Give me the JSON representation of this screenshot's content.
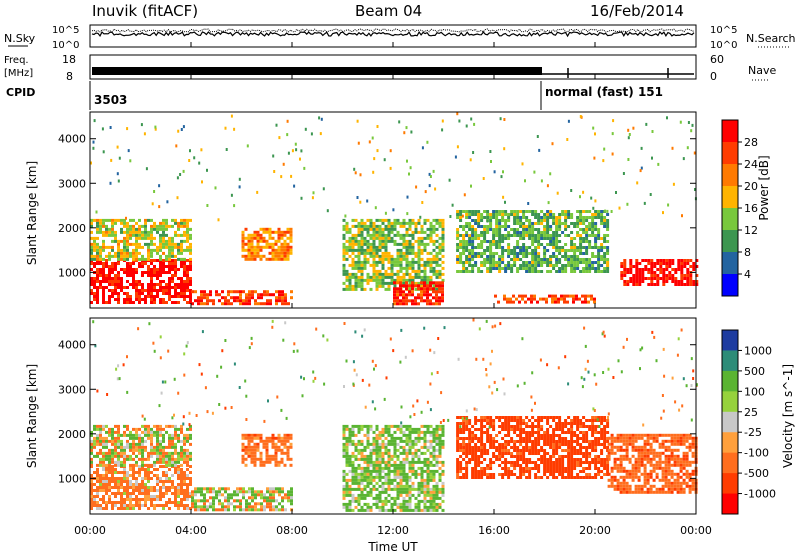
{
  "header": {
    "station": "Inuvik (fitACF)",
    "beam": "Beam 04",
    "date": "16/Feb/2014"
  },
  "nsky_panel": {
    "left_label": "N.Sky",
    "right_label": "N.Search",
    "ytick_top": "10^5",
    "ytick_bottom": "10^0"
  },
  "freq_panel": {
    "label_top": "Freq.",
    "label_bottom": "[MHz]",
    "ytick_left_top": "18",
    "ytick_left_bottom": "8",
    "ytick_right_top": "60",
    "ytick_right_bottom": "0",
    "right_label": "Nave"
  },
  "cpid_panel": {
    "label": "CPID",
    "segment1": "3503",
    "segment2": "normal (fast) 151",
    "segment2_start_hour": 18.0
  },
  "x_axis": {
    "label": "Time UT",
    "ticks": [
      "00:00",
      "04:00",
      "08:00",
      "12:00",
      "16:00",
      "20:00",
      "00:00"
    ]
  },
  "power_colorbar": {
    "label": "Power [dB]",
    "ticks": [
      "28",
      "24",
      "20",
      "16",
      "12",
      "8",
      "4"
    ],
    "colors": [
      "#ff0000",
      "#ff3c00",
      "#ff7a00",
      "#ffb400",
      "#78c83c",
      "#3c9650",
      "#2364a0",
      "#0000ff"
    ]
  },
  "velocity_colorbar": {
    "label": "Velocity [m s^-1]",
    "ticks": [
      "1000",
      "500",
      "100",
      "25",
      "-25",
      "-100",
      "-500",
      "-1000"
    ],
    "colors": [
      "#1e3ca0",
      "#2d8c78",
      "#5ab432",
      "#96d23c",
      "#c8c8c8",
      "#ffa03c",
      "#ff6e1e",
      "#ff3c00",
      "#ff0000"
    ]
  },
  "chart_data": [
    {
      "type": "heatmap",
      "title": "Power",
      "xlabel": "",
      "ylabel": "Slant Range [km]",
      "xlim": [
        0,
        24
      ],
      "ylim": [
        200,
        4600
      ],
      "yticks": [
        1000,
        2000,
        3000,
        4000
      ],
      "regions": [
        {
          "x0": 0.0,
          "x1": 4.0,
          "y0": 300,
          "y1": 1300,
          "value_db": 28
        },
        {
          "x0": 0.0,
          "x1": 4.0,
          "y0": 1300,
          "y1": 2200,
          "value_db": 14
        },
        {
          "x0": 4.0,
          "x1": 8.0,
          "y0": 300,
          "y1": 600,
          "value_db": 24
        },
        {
          "x0": 6.0,
          "x1": 8.0,
          "y0": 1300,
          "y1": 2000,
          "value_db": 20
        },
        {
          "x0": 10.0,
          "x1": 14.0,
          "y0": 600,
          "y1": 2200,
          "value_db": 12
        },
        {
          "x0": 12.0,
          "x1": 14.0,
          "y0": 300,
          "y1": 800,
          "value_db": 26
        },
        {
          "x0": 14.5,
          "x1": 20.5,
          "y0": 1000,
          "y1": 2400,
          "value_db": 10
        },
        {
          "x0": 16.0,
          "x1": 20.0,
          "y0": 300,
          "y1": 500,
          "value_db": 24
        },
        {
          "x0": 21.0,
          "x1": 24.0,
          "y0": 700,
          "y1": 1300,
          "value_db": 28
        }
      ]
    },
    {
      "type": "heatmap",
      "title": "Velocity",
      "xlabel": "Time UT",
      "ylabel": "Slant Range [km]",
      "xlim": [
        0,
        24
      ],
      "ylim": [
        200,
        4600
      ],
      "yticks": [
        1000,
        2000,
        3000,
        4000
      ],
      "regions": [
        {
          "x0": 0.0,
          "x1": 4.0,
          "y0": 300,
          "y1": 1300,
          "value_ms": -200
        },
        {
          "x0": 0.0,
          "x1": 4.0,
          "y0": 1300,
          "y1": 2200,
          "value_ms": 0
        },
        {
          "x0": 4.0,
          "x1": 8.0,
          "y0": 300,
          "y1": 800,
          "value_ms": 50
        },
        {
          "x0": 6.0,
          "x1": 8.0,
          "y0": 1300,
          "y1": 2000,
          "value_ms": -300
        },
        {
          "x0": 10.0,
          "x1": 14.0,
          "y0": 300,
          "y1": 2200,
          "value_ms": 150
        },
        {
          "x0": 14.5,
          "x1": 20.5,
          "y0": 1000,
          "y1": 2400,
          "value_ms": -700
        },
        {
          "x0": 20.5,
          "x1": 24.0,
          "y0": 700,
          "y1": 2000,
          "value_ms": -400
        }
      ]
    }
  ]
}
